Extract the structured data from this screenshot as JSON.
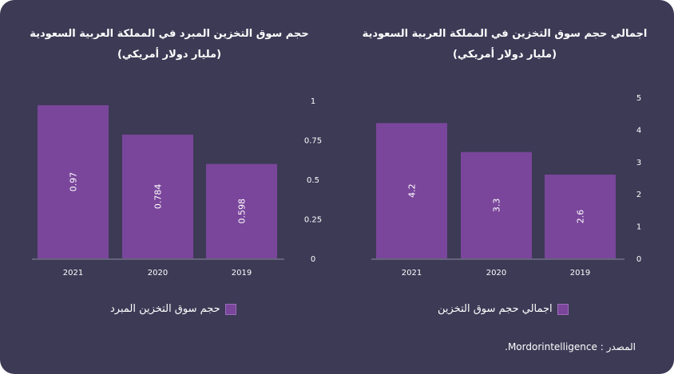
{
  "colors": {
    "background": "#3c3a55",
    "bar": "#7a469b",
    "axis": "#8e8ca3",
    "text": "#ffffff"
  },
  "chart_data": [
    {
      "type": "bar",
      "title_line1": "اجمالي حجم سوق التخزين في المملكة العربية السعودية",
      "title_line2": "(مليار دولار أمريكي)",
      "categories": [
        "2021",
        "2020",
        "2019"
      ],
      "series": [
        {
          "name": "اجمالي حجم سوق التخزين",
          "values": [
            4.2,
            3.3,
            2.6
          ]
        }
      ],
      "value_labels": [
        "4.2",
        "3.3",
        "2.6"
      ],
      "ylim": [
        0,
        5
      ],
      "yticks": [
        0,
        1,
        2,
        3,
        4,
        5
      ],
      "ytick_labels": [
        "0",
        "1",
        "2",
        "3",
        "4",
        "5"
      ],
      "grid": false,
      "legend": "bottom"
    },
    {
      "type": "bar",
      "title_line1": "حجم سوق التخزين المبرد في المملكة العربية السعودية",
      "title_line2": "(مليار دولار أمريكي)",
      "categories": [
        "2021",
        "2020",
        "2019"
      ],
      "series": [
        {
          "name": "حجم سوق التخزين المبرد",
          "values": [
            0.97,
            0.784,
            0.598
          ]
        }
      ],
      "value_labels": [
        "0.97",
        "0.784",
        "0.598"
      ],
      "ylim": [
        0,
        1
      ],
      "yticks": [
        0,
        0.25,
        0.5,
        0.75,
        1
      ],
      "ytick_labels": [
        "0",
        "0.25",
        "0.5",
        "0.75",
        "1"
      ],
      "grid": false,
      "legend": "bottom"
    }
  ],
  "source_text": "المصدر : Mordorintelligence."
}
